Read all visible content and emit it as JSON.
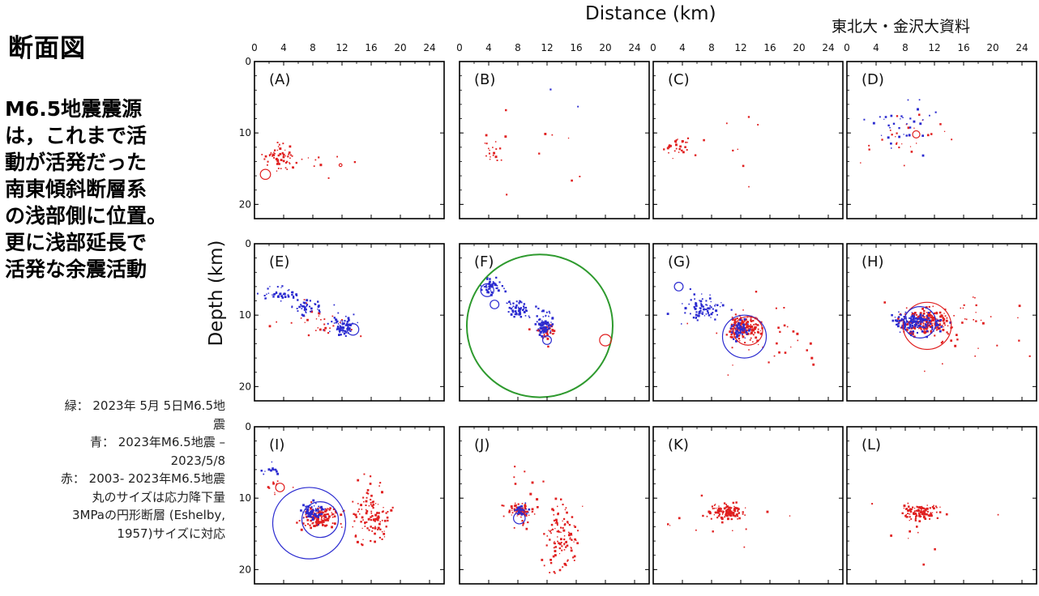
{
  "slide": {
    "title": "断面図",
    "description_lines": [
      "M6.5地震震源",
      "は，これまで活",
      "動が活発だった",
      "南東傾斜断層系",
      "の浅部側に位置。",
      "更に浅部延長で",
      "活発な余震活動"
    ],
    "legend_lines": [
      "緑： 2023年 5月 5日M6.5地",
      "震",
      "青： 2023年M6.5地震 –",
      "2023/5/8",
      "赤： 2003- 2023年M6.5地震",
      "丸のサイズは応力降下量",
      "3MPaの円形断層 (Eshelby,",
      "1957)サイズに対応"
    ],
    "credit": "東北大・金沢大資料"
  },
  "colors": {
    "green": "#2e9a2e",
    "blue": "#2b2bd0",
    "red": "#e02020",
    "frame": "#000000"
  },
  "chart_data": {
    "type": "scatter",
    "xlabel": "Distance (km)",
    "ylabel": "Depth (km)",
    "xlim": [
      0,
      26
    ],
    "ylim": [
      0,
      22
    ],
    "x_ticks": [
      0,
      4,
      8,
      12,
      16,
      20,
      24
    ],
    "y_ticks": [
      0,
      10,
      20
    ],
    "panels": [
      {
        "label": "(A)",
        "red_clusters": [
          [
            3.5,
            13.5,
            2.0,
            1.5,
            60
          ],
          [
            9,
            14,
            3,
            2,
            8
          ]
        ],
        "blue_clusters": [],
        "circles": [
          {
            "x": 1.5,
            "y": 15.8,
            "r": 0.7,
            "color": "red"
          },
          {
            "x": 11.8,
            "y": 14.5,
            "r": 0.2,
            "color": "red"
          }
        ]
      },
      {
        "label": "(B)",
        "red_clusters": [
          [
            4.5,
            12.5,
            1.5,
            1.5,
            20
          ],
          [
            12,
            11,
            6,
            5,
            8
          ]
        ],
        "blue_clusters": [
          [
            12,
            4,
            3,
            2,
            2
          ]
        ],
        "circles": []
      },
      {
        "label": "(C)",
        "red_clusters": [
          [
            3.5,
            12,
            2.0,
            1.5,
            28
          ],
          [
            11,
            12,
            5,
            5,
            8
          ]
        ],
        "blue_clusters": [],
        "circles": []
      },
      {
        "label": "(D)",
        "red_clusters": [
          [
            8,
            10.5,
            4,
            3,
            30
          ]
        ],
        "blue_clusters": [
          [
            8,
            9,
            4,
            2.5,
            35
          ]
        ],
        "circles": [
          {
            "x": 9.5,
            "y": 10.2,
            "r": 0.5,
            "color": "red"
          }
        ]
      },
      {
        "label": "(E)",
        "red_clusters": [
          [
            8,
            11,
            5,
            2,
            35
          ]
        ],
        "blue_clusters": [
          [
            3,
            7,
            2,
            1.0,
            40
          ],
          [
            7,
            8.8,
            2,
            1.0,
            40
          ],
          [
            12,
            11.5,
            1.5,
            1.0,
            80
          ]
        ],
        "circles": [
          {
            "x": 13.5,
            "y": 12,
            "r": 0.8,
            "color": "blue"
          }
        ]
      },
      {
        "label": "(F)",
        "red_clusters": [
          [
            12,
            12.5,
            1.0,
            1.0,
            40
          ]
        ],
        "blue_clusters": [
          [
            4,
            6,
            1.5,
            1.0,
            50
          ],
          [
            8,
            9,
            1.5,
            1.2,
            60
          ],
          [
            11.5,
            11.5,
            1.0,
            1.2,
            80
          ]
        ],
        "circles": [
          {
            "x": 11,
            "y": 11.5,
            "r": 10.0,
            "color": "green"
          },
          {
            "x": 20,
            "y": 13.5,
            "r": 0.8,
            "color": "red"
          },
          {
            "x": 4.8,
            "y": 8.5,
            "r": 0.6,
            "color": "blue"
          },
          {
            "x": 3.8,
            "y": 6.5,
            "r": 0.9,
            "color": "blue"
          },
          {
            "x": 12,
            "y": 13.5,
            "r": 0.6,
            "color": "blue"
          }
        ]
      },
      {
        "label": "(G)",
        "red_clusters": [
          [
            12.5,
            11.8,
            1.8,
            1.3,
            170
          ],
          [
            16,
            13,
            6,
            4,
            35
          ]
        ],
        "blue_clusters": [
          [
            7,
            9,
            2.5,
            1.5,
            80
          ],
          [
            11.8,
            12,
            1.2,
            1.0,
            60
          ]
        ],
        "circles": [
          {
            "x": 12.5,
            "y": 13,
            "r": 3.0,
            "color": "blue"
          },
          {
            "x": 13,
            "y": 12.2,
            "r": 2.0,
            "color": "red"
          },
          {
            "x": 3.5,
            "y": 6,
            "r": 0.6,
            "color": "blue"
          }
        ]
      },
      {
        "label": "(H)",
        "red_clusters": [
          [
            11,
            11,
            2.5,
            1.4,
            220
          ],
          [
            16,
            11,
            6,
            4,
            35
          ]
        ],
        "blue_clusters": [
          [
            9.5,
            11,
            2.5,
            1.2,
            160
          ]
        ],
        "circles": [
          {
            "x": 11,
            "y": 11.5,
            "r": 3.3,
            "color": "red"
          },
          {
            "x": 10,
            "y": 11,
            "r": 2.2,
            "color": "blue"
          }
        ]
      },
      {
        "label": "(I)",
        "red_clusters": [
          [
            9,
            12.5,
            2.0,
            1.5,
            160
          ],
          [
            16,
            12.5,
            2.0,
            3.5,
            110
          ],
          [
            3,
            8,
            1,
            1,
            10
          ]
        ],
        "blue_clusters": [
          [
            8,
            12,
            1.2,
            1.0,
            80
          ],
          [
            2.5,
            6,
            1.0,
            0.6,
            12
          ]
        ],
        "circles": [
          {
            "x": 7.5,
            "y": 13.5,
            "r": 5.0,
            "color": "blue"
          },
          {
            "x": 9,
            "y": 13,
            "r": 2.5,
            "color": "blue"
          },
          {
            "x": 3.5,
            "y": 8.5,
            "r": 0.6,
            "color": "red"
          }
        ]
      },
      {
        "label": "(J)",
        "red_clusters": [
          [
            8.5,
            11.8,
            1.2,
            0.8,
            80
          ],
          [
            14,
            15.5,
            2.0,
            3.5,
            110
          ],
          [
            9,
            10,
            4,
            5,
            25
          ]
        ],
        "blue_clusters": [
          [
            8.5,
            11.8,
            0.8,
            0.6,
            30
          ]
        ],
        "circles": [
          {
            "x": 8.2,
            "y": 12.8,
            "r": 0.8,
            "color": "blue"
          }
        ]
      },
      {
        "label": "(K)",
        "red_clusters": [
          [
            10,
            12,
            1.8,
            0.9,
            120
          ],
          [
            12,
            13,
            7,
            4,
            15
          ]
        ],
        "blue_clusters": [],
        "circles": []
      },
      {
        "label": "(L)",
        "red_clusters": [
          [
            10,
            12,
            2.0,
            0.9,
            110
          ],
          [
            12,
            13,
            7,
            4,
            12
          ]
        ],
        "blue_clusters": [],
        "circles": []
      }
    ]
  }
}
